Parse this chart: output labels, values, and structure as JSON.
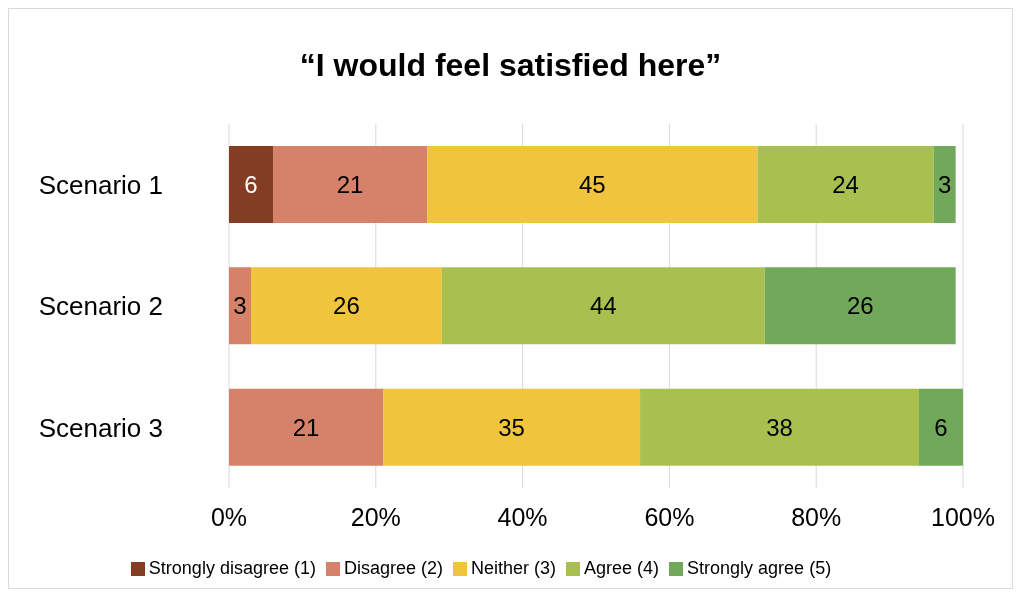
{
  "chart_data": {
    "type": "bar",
    "orientation": "horizontal",
    "stacked": true,
    "title": "“I would feel satisfied here”",
    "categories": [
      "Scenario 1",
      "Scenario 2",
      "Scenario 3"
    ],
    "series": [
      {
        "name": "Strongly disagree (1)",
        "color": "#843c22",
        "values": [
          6,
          null,
          null
        ]
      },
      {
        "name": "Disagree (2)",
        "color": "#d6826a",
        "values": [
          21,
          3,
          21
        ]
      },
      {
        "name": "Neither (3)",
        "color": "#f0c43c",
        "values": [
          45,
          26,
          35
        ]
      },
      {
        "name": "Agree (4)",
        "color": "#a9c050",
        "values": [
          24,
          44,
          38
        ]
      },
      {
        "name": "Strongly agree (5)",
        "color": "#72a85a",
        "values": [
          3,
          26,
          6
        ]
      }
    ],
    "xlim": [
      0,
      100
    ],
    "xticks": [
      {
        "value": 0,
        "label": "0%"
      },
      {
        "value": 20,
        "label": "20%"
      },
      {
        "value": 40,
        "label": "40%"
      },
      {
        "value": 60,
        "label": "60%"
      },
      {
        "value": 80,
        "label": "80%"
      },
      {
        "value": 100,
        "label": "100%"
      }
    ],
    "grid": "x",
    "legend": "bottom",
    "data_labels": true
  }
}
